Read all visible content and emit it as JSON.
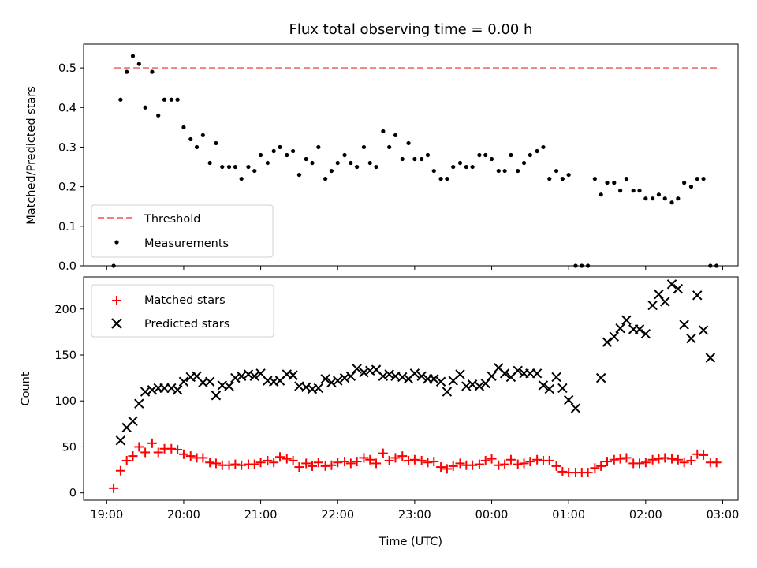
{
  "chart_data": [
    {
      "type": "scatter",
      "title": "Flux total observing time = 0.00 h",
      "xlabel": "",
      "ylabel": "Matched/Predicted stars",
      "xlim_hours": [
        18.7,
        27.2
      ],
      "ylim": [
        0,
        0.56
      ],
      "yticks": [
        0.0,
        0.1,
        0.2,
        0.3,
        0.4,
        0.5
      ],
      "ytick_labels": [
        "0.0",
        "0.1",
        "0.2",
        "0.3",
        "0.4",
        "0.5"
      ],
      "grid": false,
      "legend_position": "lower-left",
      "legend": [
        {
          "label": "Threshold",
          "marker": "dashed-line",
          "color": "#f08080"
        },
        {
          "label": "Measurements",
          "marker": "dot",
          "color": "#000000"
        }
      ],
      "threshold": {
        "y": 0.5,
        "x_range": [
          19.1,
          26.93
        ],
        "color": "#f08080"
      },
      "series": [
        {
          "name": "Measurements",
          "x": [
            19.09,
            19.18,
            19.26,
            19.34,
            19.42,
            19.5,
            19.59,
            19.67,
            19.75,
            19.84,
            19.92,
            20.0,
            20.09,
            20.17,
            20.25,
            20.34,
            20.42,
            20.5,
            20.59,
            20.67,
            20.75,
            20.84,
            20.92,
            21.0,
            21.09,
            21.17,
            21.25,
            21.34,
            21.42,
            21.5,
            21.59,
            21.67,
            21.75,
            21.84,
            21.92,
            22.0,
            22.09,
            22.17,
            22.25,
            22.34,
            22.42,
            22.5,
            22.59,
            22.67,
            22.75,
            22.84,
            22.92,
            23.0,
            23.09,
            23.17,
            23.25,
            23.34,
            23.42,
            23.5,
            23.59,
            23.67,
            23.75,
            23.84,
            23.92,
            24.0,
            24.09,
            24.17,
            24.25,
            24.34,
            24.42,
            24.5,
            24.59,
            24.67,
            24.75,
            24.84,
            24.92,
            25.0,
            25.09,
            25.17,
            25.25,
            25.34,
            25.42,
            25.5,
            25.59,
            25.67,
            25.75,
            25.84,
            25.92,
            26.0,
            26.09,
            26.17,
            26.25,
            26.34,
            26.42,
            26.5,
            26.59,
            26.67,
            26.75,
            26.84,
            26.92
          ],
          "y": [
            0.0,
            0.42,
            0.49,
            0.53,
            0.51,
            0.4,
            0.49,
            0.38,
            0.42,
            0.42,
            0.42,
            0.35,
            0.32,
            0.3,
            0.33,
            0.26,
            0.31,
            0.25,
            0.25,
            0.25,
            0.22,
            0.25,
            0.24,
            0.28,
            0.26,
            0.29,
            0.3,
            0.28,
            0.29,
            0.23,
            0.27,
            0.26,
            0.3,
            0.22,
            0.24,
            0.26,
            0.28,
            0.26,
            0.25,
            0.3,
            0.26,
            0.25,
            0.34,
            0.3,
            0.33,
            0.27,
            0.31,
            0.27,
            0.27,
            0.28,
            0.24,
            0.22,
            0.22,
            0.25,
            0.26,
            0.25,
            0.25,
            0.28,
            0.28,
            0.27,
            0.24,
            0.24,
            0.28,
            0.24,
            0.26,
            0.28,
            0.29,
            0.3,
            0.22,
            0.24,
            0.22,
            0.23,
            0.0,
            0.0,
            0.0,
            0.22,
            0.18,
            0.21,
            0.21,
            0.19,
            0.22,
            0.19,
            0.19,
            0.17,
            0.17,
            0.18,
            0.17,
            0.16,
            0.17,
            0.21,
            0.2,
            0.22,
            0.22,
            0.0,
            0.0
          ]
        }
      ]
    },
    {
      "type": "scatter",
      "title": "",
      "xlabel": "Time (UTC)",
      "ylabel": "Count",
      "xlim_hours": [
        18.7,
        27.2
      ],
      "ylim": [
        -8,
        235
      ],
      "yticks": [
        0,
        50,
        100,
        150,
        200
      ],
      "ytick_labels": [
        "0",
        "50",
        "100",
        "150",
        "200"
      ],
      "xticks_hours": [
        19,
        20,
        21,
        22,
        23,
        24,
        25,
        26,
        27
      ],
      "xtick_labels": [
        "19:00",
        "20:00",
        "21:00",
        "22:00",
        "23:00",
        "00:00",
        "01:00",
        "02:00",
        "03:00"
      ],
      "grid": false,
      "legend_position": "upper-left",
      "legend": [
        {
          "label": "Matched stars",
          "marker": "plus",
          "color": "#ff0000"
        },
        {
          "label": "Predicted stars",
          "marker": "x",
          "color": "#000000"
        }
      ],
      "series": [
        {
          "name": "Matched stars",
          "x": [
            19.09,
            19.18,
            19.26,
            19.34,
            19.42,
            19.5,
            19.59,
            19.67,
            19.75,
            19.84,
            19.92,
            20.0,
            20.09,
            20.17,
            20.25,
            20.34,
            20.42,
            20.5,
            20.59,
            20.67,
            20.75,
            20.84,
            20.92,
            21.0,
            21.09,
            21.17,
            21.25,
            21.34,
            21.42,
            21.5,
            21.59,
            21.67,
            21.75,
            21.84,
            21.92,
            22.0,
            22.09,
            22.17,
            22.25,
            22.34,
            22.42,
            22.5,
            22.59,
            22.67,
            22.75,
            22.84,
            22.92,
            23.0,
            23.09,
            23.17,
            23.25,
            23.34,
            23.42,
            23.5,
            23.59,
            23.67,
            23.75,
            23.84,
            23.92,
            24.0,
            24.09,
            24.17,
            24.25,
            24.34,
            24.42,
            24.5,
            24.59,
            24.67,
            24.75,
            24.84,
            24.92,
            25.0,
            25.09,
            25.17,
            25.25,
            25.34,
            25.42,
            25.5,
            25.59,
            25.67,
            25.75,
            25.84,
            25.92,
            26.0,
            26.09,
            26.17,
            26.25,
            26.34,
            26.42,
            26.5,
            26.59,
            26.67,
            26.75,
            26.84,
            26.92
          ],
          "y": [
            5,
            24,
            35,
            40,
            50,
            44,
            54,
            44,
            48,
            48,
            47,
            42,
            40,
            38,
            38,
            33,
            32,
            30,
            30,
            31,
            30,
            31,
            31,
            33,
            35,
            33,
            39,
            37,
            35,
            28,
            32,
            29,
            33,
            29,
            30,
            33,
            34,
            32,
            34,
            38,
            36,
            32,
            43,
            35,
            38,
            40,
            35,
            36,
            35,
            33,
            34,
            28,
            26,
            29,
            32,
            30,
            30,
            31,
            35,
            37,
            30,
            31,
            36,
            31,
            32,
            34,
            36,
            35,
            35,
            29,
            23,
            22,
            22,
            22,
            22,
            27,
            29,
            34,
            36,
            37,
            38,
            32,
            32,
            33,
            36,
            37,
            38,
            37,
            36,
            33,
            35,
            42,
            41,
            33,
            33
          ]
        },
        {
          "name": "Predicted stars",
          "x": [
            19.18,
            19.26,
            19.34,
            19.42,
            19.5,
            19.59,
            19.67,
            19.75,
            19.84,
            19.92,
            20.0,
            20.09,
            20.17,
            20.25,
            20.34,
            20.42,
            20.5,
            20.59,
            20.67,
            20.75,
            20.84,
            20.92,
            21.0,
            21.09,
            21.17,
            21.25,
            21.34,
            21.42,
            21.5,
            21.59,
            21.67,
            21.75,
            21.84,
            21.92,
            22.0,
            22.09,
            22.17,
            22.25,
            22.34,
            22.42,
            22.5,
            22.59,
            22.67,
            22.75,
            22.84,
            22.92,
            23.0,
            23.09,
            23.17,
            23.25,
            23.34,
            23.42,
            23.5,
            23.59,
            23.67,
            23.75,
            23.84,
            23.92,
            24.0,
            24.09,
            24.17,
            24.25,
            24.34,
            24.42,
            24.5,
            24.59,
            24.67,
            24.75,
            24.84,
            24.92,
            25.0,
            25.09,
            25.42,
            25.5,
            25.59,
            25.67,
            25.75,
            25.84,
            25.92,
            26.0,
            26.09,
            26.17,
            26.25,
            26.34,
            26.42,
            26.5,
            26.59,
            26.67,
            26.75,
            26.84
          ],
          "y": [
            57,
            71,
            78,
            97,
            110,
            112,
            114,
            114,
            114,
            112,
            121,
            126,
            127,
            120,
            121,
            106,
            117,
            116,
            125,
            127,
            129,
            127,
            130,
            122,
            121,
            122,
            129,
            128,
            116,
            115,
            113,
            114,
            124,
            120,
            122,
            125,
            127,
            135,
            131,
            133,
            134,
            127,
            129,
            127,
            126,
            124,
            130,
            127,
            124,
            124,
            121,
            110,
            122,
            129,
            116,
            118,
            116,
            119,
            127,
            136,
            130,
            126,
            133,
            130,
            130,
            130,
            117,
            113,
            126,
            114,
            101,
            92,
            125,
            164,
            170,
            179,
            188,
            178,
            178,
            173,
            204,
            216,
            208,
            227,
            222,
            183,
            168,
            215,
            177,
            147
          ]
        }
      ]
    }
  ]
}
